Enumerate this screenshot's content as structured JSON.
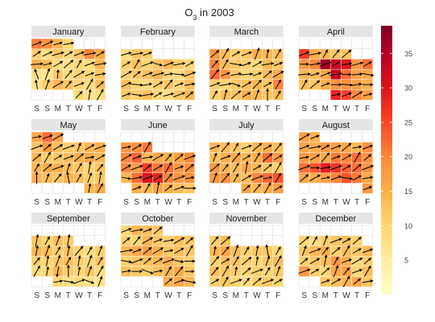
{
  "chart_data": {
    "type": "heatmap",
    "title": "O₃ in 2003",
    "year": 2003,
    "weekday_labels": [
      "S",
      "S",
      "M",
      "T",
      "W",
      "T",
      "F"
    ],
    "months": [
      "January",
      "February",
      "March",
      "April",
      "May",
      "June",
      "July",
      "August",
      "September",
      "October",
      "November",
      "December"
    ],
    "color_scale": {
      "domain": [
        0,
        39
      ],
      "colors": [
        "#ffffcc",
        "#ffeda0",
        "#fed976",
        "#feb24c",
        "#fd8d3c",
        "#fc4e2a",
        "#e31a1c",
        "#bd0026",
        "#800026"
      ],
      "ticks": [
        5,
        10,
        15,
        20,
        25,
        30,
        35
      ]
    },
    "values": {
      "January": [
        10,
        8,
        9,
        7,
        11,
        14,
        12,
        10,
        9,
        13,
        8,
        7,
        12,
        9,
        11,
        10,
        12,
        15,
        13,
        9,
        8,
        10,
        9,
        14,
        11,
        8,
        12,
        9,
        12,
        20,
        16,
        21,
        19,
        14,
        10
      ],
      "February": [
        12,
        11,
        13,
        10,
        9,
        12,
        14,
        13,
        10,
        9,
        11,
        12,
        10,
        13,
        11,
        12,
        13,
        14,
        10,
        9,
        12,
        11,
        13,
        10,
        12,
        14,
        11,
        10,
        9,
        12,
        11
      ],
      "March": [
        11,
        13,
        12,
        15,
        14,
        12,
        13,
        11,
        10,
        12,
        13,
        14,
        12,
        20,
        22,
        18,
        12,
        10,
        11,
        14,
        16,
        20,
        13,
        12,
        11,
        10,
        14,
        12,
        18,
        13,
        11,
        12,
        15,
        14,
        13
      ],
      "April": [
        28,
        25,
        20,
        17,
        13,
        12,
        15,
        18,
        19,
        17,
        15,
        14,
        13,
        16,
        33,
        22,
        17,
        16,
        18,
        20,
        36,
        32,
        30,
        18,
        22,
        26,
        15,
        14,
        12,
        12
      ],
      "May": [
        14,
        16,
        15,
        13,
        12,
        14,
        13,
        11,
        12,
        14,
        16,
        15,
        13,
        12,
        10,
        13,
        14,
        11,
        12,
        13,
        15,
        16,
        14,
        12,
        18,
        13,
        11,
        12,
        14,
        15,
        16,
        22,
        17
      ],
      "June": [
        15,
        14,
        16,
        15,
        13,
        12,
        14,
        22,
        30,
        28,
        20,
        18,
        19,
        20,
        17,
        26,
        21,
        22,
        18,
        19,
        20,
        23,
        14,
        16,
        15,
        17,
        20,
        18,
        19,
        21
      ],
      "July": [
        16,
        14,
        15,
        17,
        18,
        19,
        14,
        13,
        20,
        22,
        24,
        18,
        14,
        13,
        16,
        14,
        12,
        11,
        13,
        15,
        16,
        14,
        15,
        22,
        18,
        14,
        13,
        12,
        11,
        14,
        15,
        13
      ],
      "August": [
        18,
        16,
        15,
        17,
        20,
        24,
        21,
        16,
        22,
        24,
        29,
        27,
        23,
        22,
        19,
        18,
        17,
        16,
        21,
        20,
        22,
        19,
        16,
        15,
        18,
        17,
        16,
        14,
        19,
        17,
        15
      ],
      "September": [
        10,
        8,
        9,
        8,
        7,
        9,
        10,
        14,
        11,
        10,
        12,
        9,
        11,
        10,
        12,
        13,
        11,
        10,
        12,
        14,
        13,
        11,
        12,
        10,
        9,
        11,
        12,
        10,
        13,
        11
      ],
      "October": [
        15,
        16,
        14,
        13,
        12,
        11,
        13,
        14,
        16,
        12,
        11,
        12,
        13,
        14,
        15,
        12,
        11,
        14,
        16,
        17,
        15,
        12,
        13,
        12,
        11,
        10,
        14,
        12,
        11,
        13,
        12,
        10,
        14,
        13,
        12
      ],
      "November": [
        11,
        12,
        10,
        9,
        11,
        12,
        10,
        13,
        12,
        11,
        10,
        11,
        10,
        12,
        11,
        13,
        12,
        11,
        10,
        12,
        13,
        14,
        16,
        13,
        11,
        12,
        12,
        10,
        11,
        13
      ],
      "December": [
        12,
        13,
        14,
        16,
        12,
        18,
        11,
        10,
        16,
        17,
        10,
        13,
        11,
        12,
        13,
        18,
        15,
        10,
        11,
        12,
        14,
        15,
        11,
        13,
        12,
        14,
        10,
        9,
        11,
        12,
        13,
        11
      ]
    },
    "wind_direction_deg": {
      "note": "Vector angles (degrees, 0 = arrow pointing right, positive = upward) for each day",
      "January": [
        45,
        80,
        60,
        100,
        70,
        30,
        50,
        20,
        60,
        40,
        110,
        70,
        85,
        50,
        30,
        20,
        10,
        5,
        15,
        30,
        40,
        60,
        20,
        10,
        35,
        25,
        15,
        30,
        20,
        10,
        30,
        20,
        25,
        15,
        10
      ],
      "February": [
        20,
        -10,
        10,
        30,
        15,
        20,
        40,
        25,
        -5,
        10,
        30,
        50,
        20,
        10,
        30,
        40,
        20,
        15,
        10,
        -5,
        20,
        30,
        60,
        20,
        -15,
        20,
        10,
        30,
        15,
        10,
        20
      ],
      "March": [
        60,
        75,
        40,
        30,
        70,
        90,
        60,
        20,
        10,
        -20,
        30,
        45,
        30,
        60,
        50,
        20,
        10,
        5,
        20,
        40,
        30,
        50,
        60,
        -10,
        20,
        30,
        10,
        20,
        40,
        60,
        30,
        20,
        70,
        80,
        60
      ],
      "April": [
        10,
        20,
        30,
        15,
        60,
        40,
        20,
        0,
        -5,
        10,
        0,
        5,
        15,
        20,
        10,
        0,
        5,
        -10,
        0,
        10,
        20,
        30,
        10,
        15,
        30,
        20,
        10,
        60,
        50,
        40
      ],
      "May": [
        80,
        60,
        90,
        70,
        50,
        100,
        60,
        70,
        80,
        60,
        40,
        20,
        70,
        60,
        80,
        50,
        40,
        60,
        30,
        20,
        40,
        10,
        30,
        20,
        40,
        30,
        20,
        70,
        30,
        20,
        10,
        20,
        30
      ],
      "June": [
        20,
        60,
        80,
        40,
        20,
        0,
        -10,
        10,
        20,
        30,
        50,
        20,
        10,
        30,
        20,
        40,
        30,
        60,
        20,
        40,
        30,
        20,
        10,
        30,
        50,
        40,
        20,
        10,
        30,
        60
      ],
      "July": [
        40,
        50,
        60,
        30,
        70,
        50,
        60,
        30,
        20,
        10,
        60,
        40,
        50,
        60,
        80,
        30,
        40,
        60,
        70,
        20,
        50,
        30,
        60,
        40,
        30,
        20,
        50,
        60,
        20,
        40,
        30,
        50
      ],
      "August": [
        20,
        40,
        30,
        10,
        20,
        -10,
        30,
        10,
        20,
        0,
        10,
        20,
        30,
        40,
        20,
        10,
        30,
        50,
        20,
        30,
        60,
        40,
        20,
        10,
        30,
        20,
        40,
        10,
        20,
        30,
        20
      ],
      "September": [
        10,
        -10,
        20,
        -20,
        70,
        60,
        80,
        -100,
        90,
        80,
        70,
        60,
        50,
        80,
        70,
        60,
        80,
        70,
        60,
        80,
        70,
        60,
        80,
        50,
        60,
        70,
        80,
        60,
        70,
        80
      ],
      "October": [
        40,
        20,
        -10,
        10,
        0,
        -20,
        10,
        60,
        50,
        0,
        -10,
        20,
        40,
        30,
        20,
        -10,
        0,
        10,
        20,
        40,
        30,
        10,
        30,
        60,
        40,
        50,
        30,
        20,
        10,
        30,
        40,
        20,
        10,
        20,
        40
      ],
      "November": [
        30,
        60,
        20,
        50,
        40,
        20,
        30,
        50,
        60,
        80,
        40,
        20,
        60,
        70,
        50,
        30,
        60,
        40,
        80,
        70,
        60,
        80,
        50,
        70,
        60,
        80,
        100,
        60,
        50,
        40
      ],
      "December": [
        20,
        30,
        60,
        40,
        10,
        20,
        30,
        40,
        70,
        50,
        20,
        60,
        40,
        30,
        80,
        60,
        20,
        30,
        40,
        70,
        20,
        50,
        40,
        60,
        30,
        20,
        40,
        60,
        70,
        20,
        30,
        40
      ]
    }
  }
}
